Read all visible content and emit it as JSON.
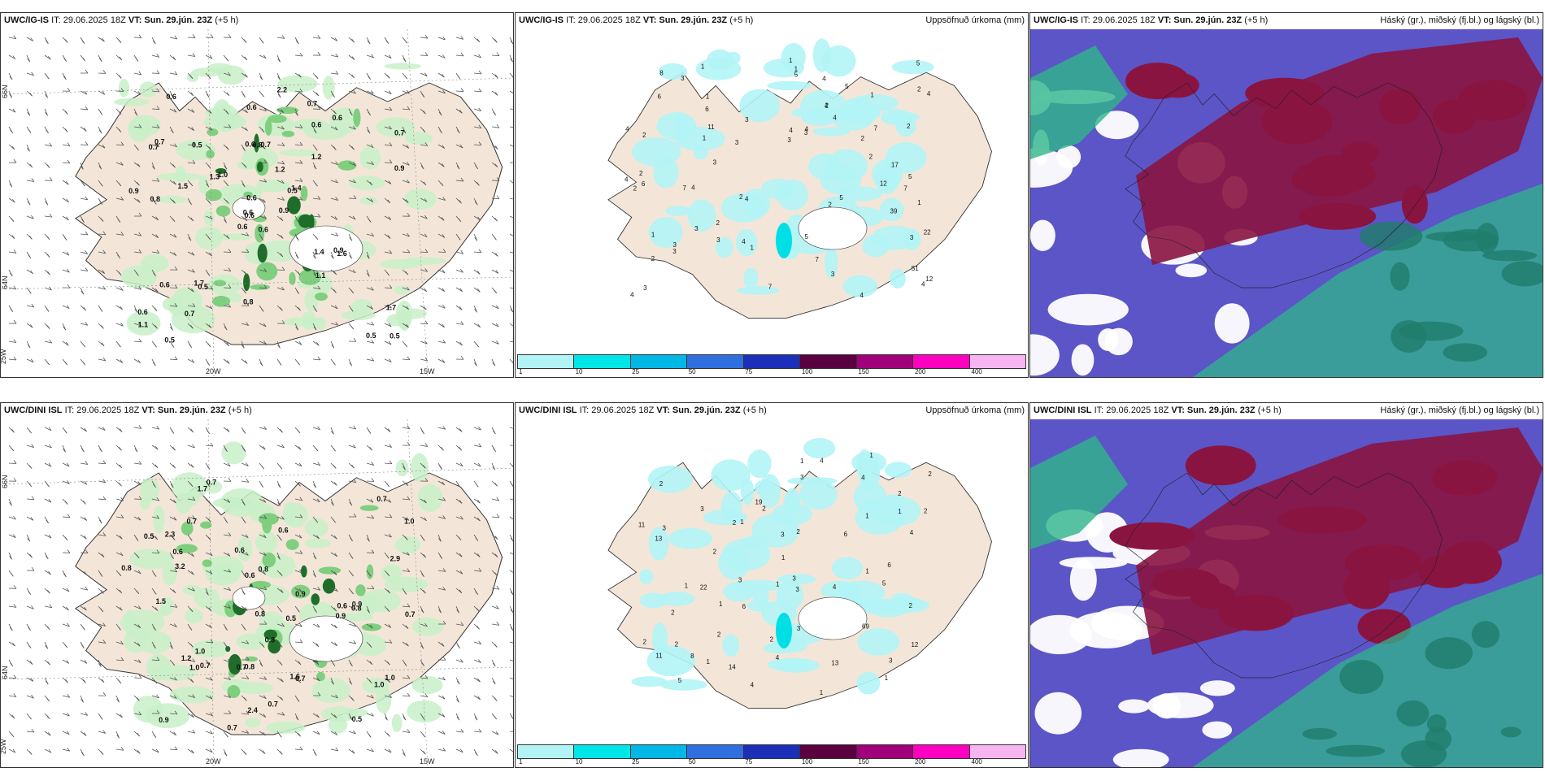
{
  "panels": [
    {
      "id": "top-left",
      "model": "UWC/IG-IS",
      "it": "IT: 29.06.2025 18Z",
      "vt": "VT: Sun. 29.jún. 23Z",
      "lead": "(+5 h)",
      "right_title": "",
      "lat_labels": [
        "66N",
        "64N"
      ],
      "lon_labels": [
        "25W",
        "20W",
        "15W"
      ],
      "values": [
        "0.6",
        "0.7",
        "0.6",
        "0.6",
        "0.5",
        "0.5",
        "0.7",
        "0.7",
        "0.6",
        "0.9",
        "0.6",
        "0.5",
        "0.8",
        "0.7",
        "0.6",
        "1.2",
        "0.5",
        "0.6",
        "1.2",
        "0.6",
        "1.0",
        "1.1",
        "0.7",
        "0.8",
        "1.4",
        "1.6",
        "0.7",
        "0.6",
        "0.9",
        "1.4",
        "0.9",
        "0.6",
        "0.8",
        "0.6",
        "0.5",
        "0.6",
        "1.7",
        "0.5",
        "1.7",
        "0.9",
        "2.2",
        "1.3",
        "1.5",
        "1.1"
      ]
    },
    {
      "id": "top-middle",
      "model": "UWC/IG-IS",
      "it": "IT: 29.06.2025 18Z",
      "vt": "VT: Sun. 29.jún. 23Z",
      "lead": "(+5 h)",
      "right_title": "Uppsöfnuð úrkoma (mm)",
      "lat_labels": [
        "66N",
        "64N"
      ],
      "values": [
        "1",
        "3",
        "2",
        "3",
        "2",
        "4",
        "5",
        "4",
        "3",
        "2",
        "3",
        "1",
        "4",
        "4",
        "2",
        "2",
        "4",
        "3",
        "5",
        "3",
        "4",
        "4",
        "1",
        "2",
        "3",
        "2",
        "5",
        "2",
        "3",
        "7",
        "5",
        "3",
        "4",
        "3",
        "4",
        "2",
        "3",
        "3",
        "1",
        "5",
        "6",
        "4",
        "17",
        "12",
        "11",
        "7",
        "4",
        "2",
        "2",
        "7",
        "39",
        "12",
        "51",
        "7",
        "1",
        "6",
        "22",
        "8",
        "7",
        "4",
        "4",
        "2",
        "6",
        "5",
        "4",
        "3",
        "1",
        "1",
        "1",
        "1"
      ],
      "legend_values": [
        "1",
        "10",
        "25",
        "50",
        "75",
        "100",
        "150",
        "200",
        "400"
      ]
    },
    {
      "id": "top-right",
      "model": "UWC/IG-IS",
      "it": "IT: 29.06.2025 18Z",
      "vt": "VT: Sun. 29.jún. 23Z",
      "lead": "(+5 h)",
      "right_title": "Háský (gr.), miðský (fj.bl.) og lágský (bl.)"
    },
    {
      "id": "bottom-left",
      "model": "UWC/DINI ISL",
      "it": "IT: 29.06.2025 18Z",
      "vt": "VT: Sun. 29.jún. 23Z",
      "lead": "(+5 h)",
      "right_title": "",
      "lat_labels": [
        "66N",
        "64N"
      ],
      "lon_labels": [
        "25W",
        "20W",
        "15W"
      ],
      "values": [
        "0.6",
        "0.5",
        "0.6",
        "1.7",
        "0.7",
        "0.6",
        "0.8",
        "0.5",
        "1.0",
        "0.9",
        "0.7",
        "0.6",
        "0.5",
        "0.9",
        "0.8",
        "0.7",
        "0.6",
        "0.8",
        "1.2",
        "0.8",
        "0.7",
        "1.0",
        "0.7",
        "0.7",
        "2.9",
        "0.9",
        "1.0",
        "0.7",
        "0.8",
        "1.5",
        "0.9",
        "1.6",
        "2.3",
        "1.0",
        "0.8",
        "0.7",
        "1.0",
        "2.4",
        "3.2",
        "0.7"
      ]
    },
    {
      "id": "bottom-middle",
      "model": "UWC/DINI ISL",
      "it": "IT: 29.06.2025 18Z",
      "vt": "VT: Sun. 29.jún. 23Z",
      "lead": "(+5 h)",
      "right_title": "Uppsöfnuð úrkoma (mm)",
      "lat_labels": [
        "66N",
        "64N"
      ],
      "values": [
        "1",
        "1",
        "2",
        "2",
        "2",
        "1",
        "3",
        "2",
        "1",
        "2",
        "4",
        "4",
        "6",
        "2",
        "2",
        "1",
        "2",
        "2",
        "3",
        "2",
        "1",
        "1",
        "5",
        "6",
        "4",
        "2",
        "1",
        "3",
        "5",
        "3",
        "4",
        "2",
        "1",
        "4",
        "3",
        "3",
        "4",
        "19",
        "22",
        "13",
        "11",
        "3",
        "1",
        "69",
        "8",
        "14",
        "12",
        "6",
        "1",
        "3",
        "3",
        "2",
        "1",
        "13",
        "11",
        "2",
        "1"
      ],
      "legend_values": [
        "1",
        "10",
        "25",
        "50",
        "75",
        "100",
        "150",
        "200",
        "400"
      ]
    },
    {
      "id": "bottom-right",
      "model": "UWC/DINI ISL",
      "it": "IT: 29.06.2025 18Z",
      "vt": "VT: Sun. 29.jún. 23Z",
      "lead": "(+5 h)",
      "right_title": "Háský (gr.), miðský (fj.bl.) og lágský (bl.)"
    }
  ],
  "legend_colors": [
    "#b2f4f6",
    "#00e6e8",
    "#00b7e6",
    "#2f6fe0",
    "#1c2fb8",
    "#5a0040",
    "#a0007a",
    "#ff00c0",
    "#f6b4f0"
  ],
  "colors": {
    "land": "#f3e6d8",
    "precip_light": "#c8f0c8",
    "precip_mid": "#7fcf7f",
    "precip_dark": "#1e6e2a",
    "accum_light": "#b2f4f6",
    "cloud_high": "#8a1440",
    "cloud_mid": "#5b55c8",
    "cloud_low": "#2fb58a"
  }
}
